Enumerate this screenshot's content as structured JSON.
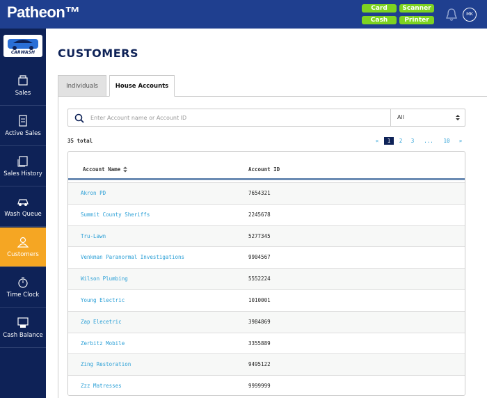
{
  "header": {
    "logo": "Patheon™",
    "buttons": [
      "Card",
      "Scanner",
      "Cash",
      "Printer"
    ],
    "avatar": "MK"
  },
  "sidebar": {
    "brand": "CARWASH",
    "items": [
      "Sales",
      "Active Sales",
      "Sales History",
      "Wash Queue",
      "Customers",
      "Time Clock",
      "Cash Balance"
    ],
    "active": 4
  },
  "page": {
    "title": "CUSTOMERS",
    "tabs": [
      "Individuals",
      "House Accounts"
    ],
    "active_tab": 1,
    "search_placeholder": "Enter Account name or Account ID",
    "filter": "All",
    "total": "35 total",
    "pagination": [
      "«",
      "1",
      "2",
      "3",
      "...",
      "10",
      "»"
    ],
    "current_page": 1
  },
  "table": {
    "columns": [
      "Account Name",
      "Account ID"
    ],
    "rows": [
      [
        "Akron PD",
        "7654321"
      ],
      [
        "Summit County Sheriffs",
        "2245678"
      ],
      [
        "Tru-Lawn",
        "5277345"
      ],
      [
        "Venkman Paranormal Investigations",
        "9904567"
      ],
      [
        "Wilson Plumbing",
        "5552224"
      ],
      [
        "Young Electric",
        "1010001"
      ],
      [
        "Zap Elecetric",
        "3984869"
      ],
      [
        "Zerbitz Mobile",
        "3355889"
      ],
      [
        "Zing Restoration",
        "9495122"
      ],
      [
        "Zzz Matresses",
        "9999999"
      ]
    ]
  }
}
